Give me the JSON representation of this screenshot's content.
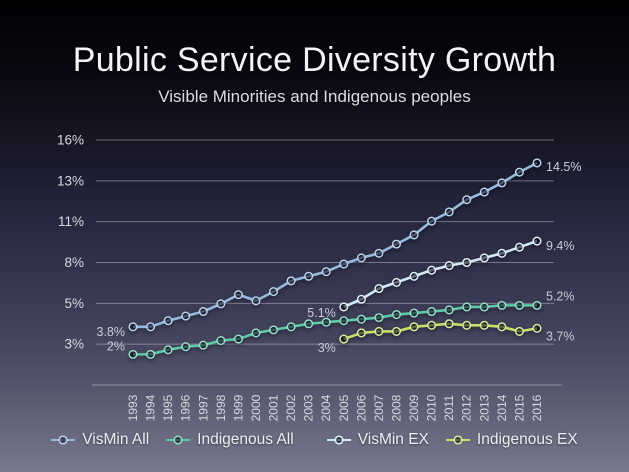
{
  "slide": {
    "title": "Public Service Diversity Growth",
    "subtitle": "Visible Minorities and Indigenous peoples"
  },
  "chart_data": {
    "type": "line",
    "title": "Public Service Diversity Growth",
    "subtitle": "Visible Minorities and Indigenous peoples",
    "x": [
      1993,
      1994,
      1995,
      1996,
      1997,
      1998,
      1999,
      2000,
      2001,
      2002,
      2003,
      2004,
      2005,
      2006,
      2007,
      2008,
      2009,
      2010,
      2011,
      2012,
      2013,
      2014,
      2015,
      2016
    ],
    "ylim": [
      0,
      16
    ],
    "grid": true,
    "legend_position": "bottom",
    "y_ticks": [
      {
        "label": "16%",
        "value": 16
      },
      {
        "label": "13%",
        "value": 13.33
      },
      {
        "label": "11%",
        "value": 10.67
      },
      {
        "label": "8%",
        "value": 8
      },
      {
        "label": "5%",
        "value": 5.33
      },
      {
        "label": "3%",
        "value": 2.67
      }
    ],
    "series": [
      {
        "name": "VisMin All",
        "color": "#96badd",
        "start_year": 1993,
        "values": [
          3.8,
          3.8,
          4.2,
          4.5,
          4.8,
          5.3,
          5.9,
          5.5,
          6.1,
          6.8,
          7.1,
          7.4,
          7.9,
          8.3,
          8.6,
          9.2,
          9.8,
          10.7,
          11.3,
          12.1,
          12.6,
          13.2,
          13.9,
          14.5
        ],
        "start_label": "3.8%",
        "end_label": "14.5%"
      },
      {
        "name": "Indigenous All",
        "color": "#5fcaa8",
        "start_year": 1993,
        "values": [
          2.0,
          2.0,
          2.3,
          2.5,
          2.6,
          2.9,
          3.0,
          3.4,
          3.6,
          3.8,
          4.0,
          4.1,
          4.2,
          4.3,
          4.4,
          4.6,
          4.7,
          4.8,
          4.9,
          5.1,
          5.1,
          5.2,
          5.2,
          5.2
        ],
        "start_label": "2%",
        "end_label": "5.2%"
      },
      {
        "name": "VisMin EX",
        "color": "#d3e9f4",
        "start_year": 2005,
        "values": [
          5.1,
          5.6,
          6.3,
          6.7,
          7.1,
          7.5,
          7.8,
          8.0,
          8.3,
          8.6,
          9.0,
          9.4
        ],
        "start_label": "5.1%",
        "end_label": "9.4%"
      },
      {
        "name": "Indigenous EX",
        "color": "#c9df68",
        "start_year": 2005,
        "values": [
          3.0,
          3.4,
          3.5,
          3.5,
          3.8,
          3.9,
          4.0,
          3.9,
          3.9,
          3.8,
          3.5,
          3.7
        ],
        "start_label": "3%",
        "end_label": "3.7%"
      }
    ],
    "colors": {
      "gridline": "rgba(198,199,211,0.5)",
      "axis_line": "rgba(202,203,214,0.55)",
      "tick_label": "#d8d9df",
      "value_label": "#c9cbd6"
    }
  }
}
